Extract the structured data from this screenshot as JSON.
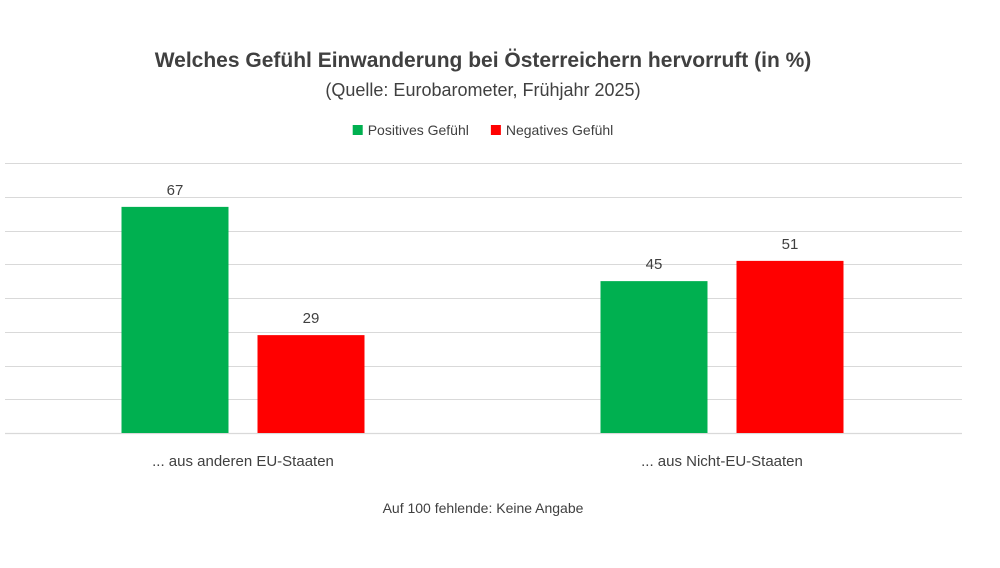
{
  "chart_data": {
    "type": "bar",
    "title": "Welches Gefühl Einwanderung bei Österreichern hervorruft (in %)",
    "subtitle": "(Quelle: Eurobarometer, Frühjahr 2025)",
    "categories": [
      "... aus anderen EU-Staaten",
      "... aus Nicht-EU-Staaten"
    ],
    "series": [
      {
        "name": "Positives Gefühl",
        "values": [
          67,
          45
        ],
        "color": "#00b050"
      },
      {
        "name": "Negatives Gefühl",
        "values": [
          29,
          51
        ],
        "color": "#ff0000"
      }
    ],
    "ylim": [
      0,
      80
    ],
    "grid_step": 10,
    "grid": true,
    "legend": "top",
    "xlabel": "",
    "ylabel": "",
    "footnote": "Auf 100 fehlende: Keine Angabe"
  }
}
